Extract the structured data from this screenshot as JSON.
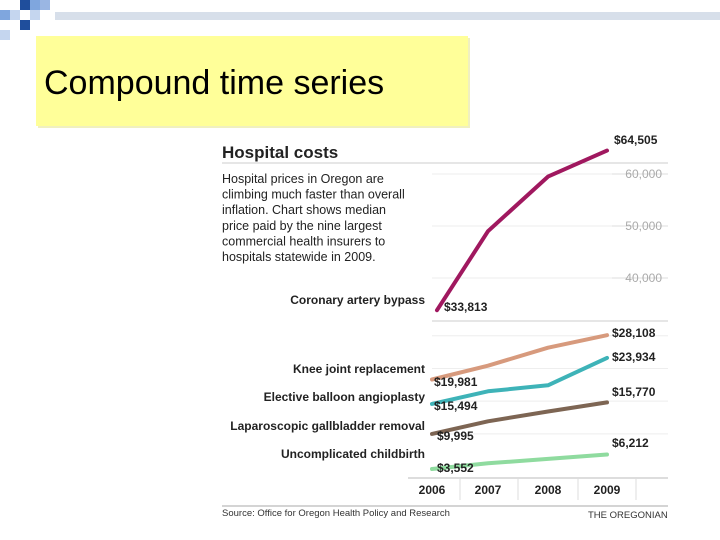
{
  "slide_title": "Compound time series",
  "chart_data": {
    "type": "line",
    "title": "Hospital costs",
    "description": [
      "Hospital prices in Oregon are",
      "climbing much faster than overall",
      "inflation. Chart shows median",
      "price paid by the nine largest",
      "commercial health insurers to",
      "hospitals statewide in 2009."
    ],
    "x": [
      "2006",
      "2007",
      "2008",
      "2009"
    ],
    "upper_axis_ticks": [
      {
        "value": 60000,
        "label": "60,000"
      },
      {
        "value": 50000,
        "label": "50,000"
      },
      {
        "value": 40000,
        "label": "40,000"
      }
    ],
    "series": [
      {
        "name": "Coronary artery bypass",
        "color": "#a0185f",
        "values": [
          33813,
          49000,
          59500,
          64505
        ],
        "start_label": "$33,813",
        "end_label": "$64,505"
      },
      {
        "name": "Knee joint replacement",
        "color": "#d79a7d",
        "values": [
          19981,
          22500,
          25800,
          28108
        ],
        "start_label": "$19,981",
        "end_label": "$28,108"
      },
      {
        "name": "Elective balloon angioplasty",
        "color": "#3eb3b8",
        "values": [
          15494,
          17800,
          18900,
          23934
        ],
        "start_label": "$15,494",
        "end_label": "$23,934"
      },
      {
        "name": "Laparoscopic gallbladder removal",
        "color": "#7d6553",
        "values": [
          9995,
          12300,
          14100,
          15770
        ],
        "start_label": "$9,995",
        "end_label": "$15,770"
      },
      {
        "name": "Uncomplicated childbirth",
        "color": "#8fdb9f",
        "values": [
          3552,
          4600,
          5400,
          6212
        ],
        "start_label": "$3,552",
        "end_label": "$6,212"
      }
    ],
    "source": "Source: Office for Oregon Health Policy and Research",
    "credit": "THE OREGONIAN"
  }
}
